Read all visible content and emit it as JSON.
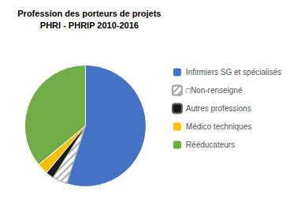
{
  "chart_data": {
    "type": "pie",
    "title": "Profession des porteurs de projets",
    "subtitle": "PHRI - PHRIP 2010-2016",
    "categories": [
      "Infirmiers SG et spécialisés",
      "□Non-renseigné",
      "Autres professions",
      "Médico techniques",
      "Rééducateurs"
    ],
    "values": [
      55,
      4,
      2,
      3,
      36
    ],
    "colors": [
      "#4472C4",
      "#FFFFFF",
      "#1a1a1a",
      "#FFC000",
      "#70AD47"
    ],
    "legend": "right"
  }
}
